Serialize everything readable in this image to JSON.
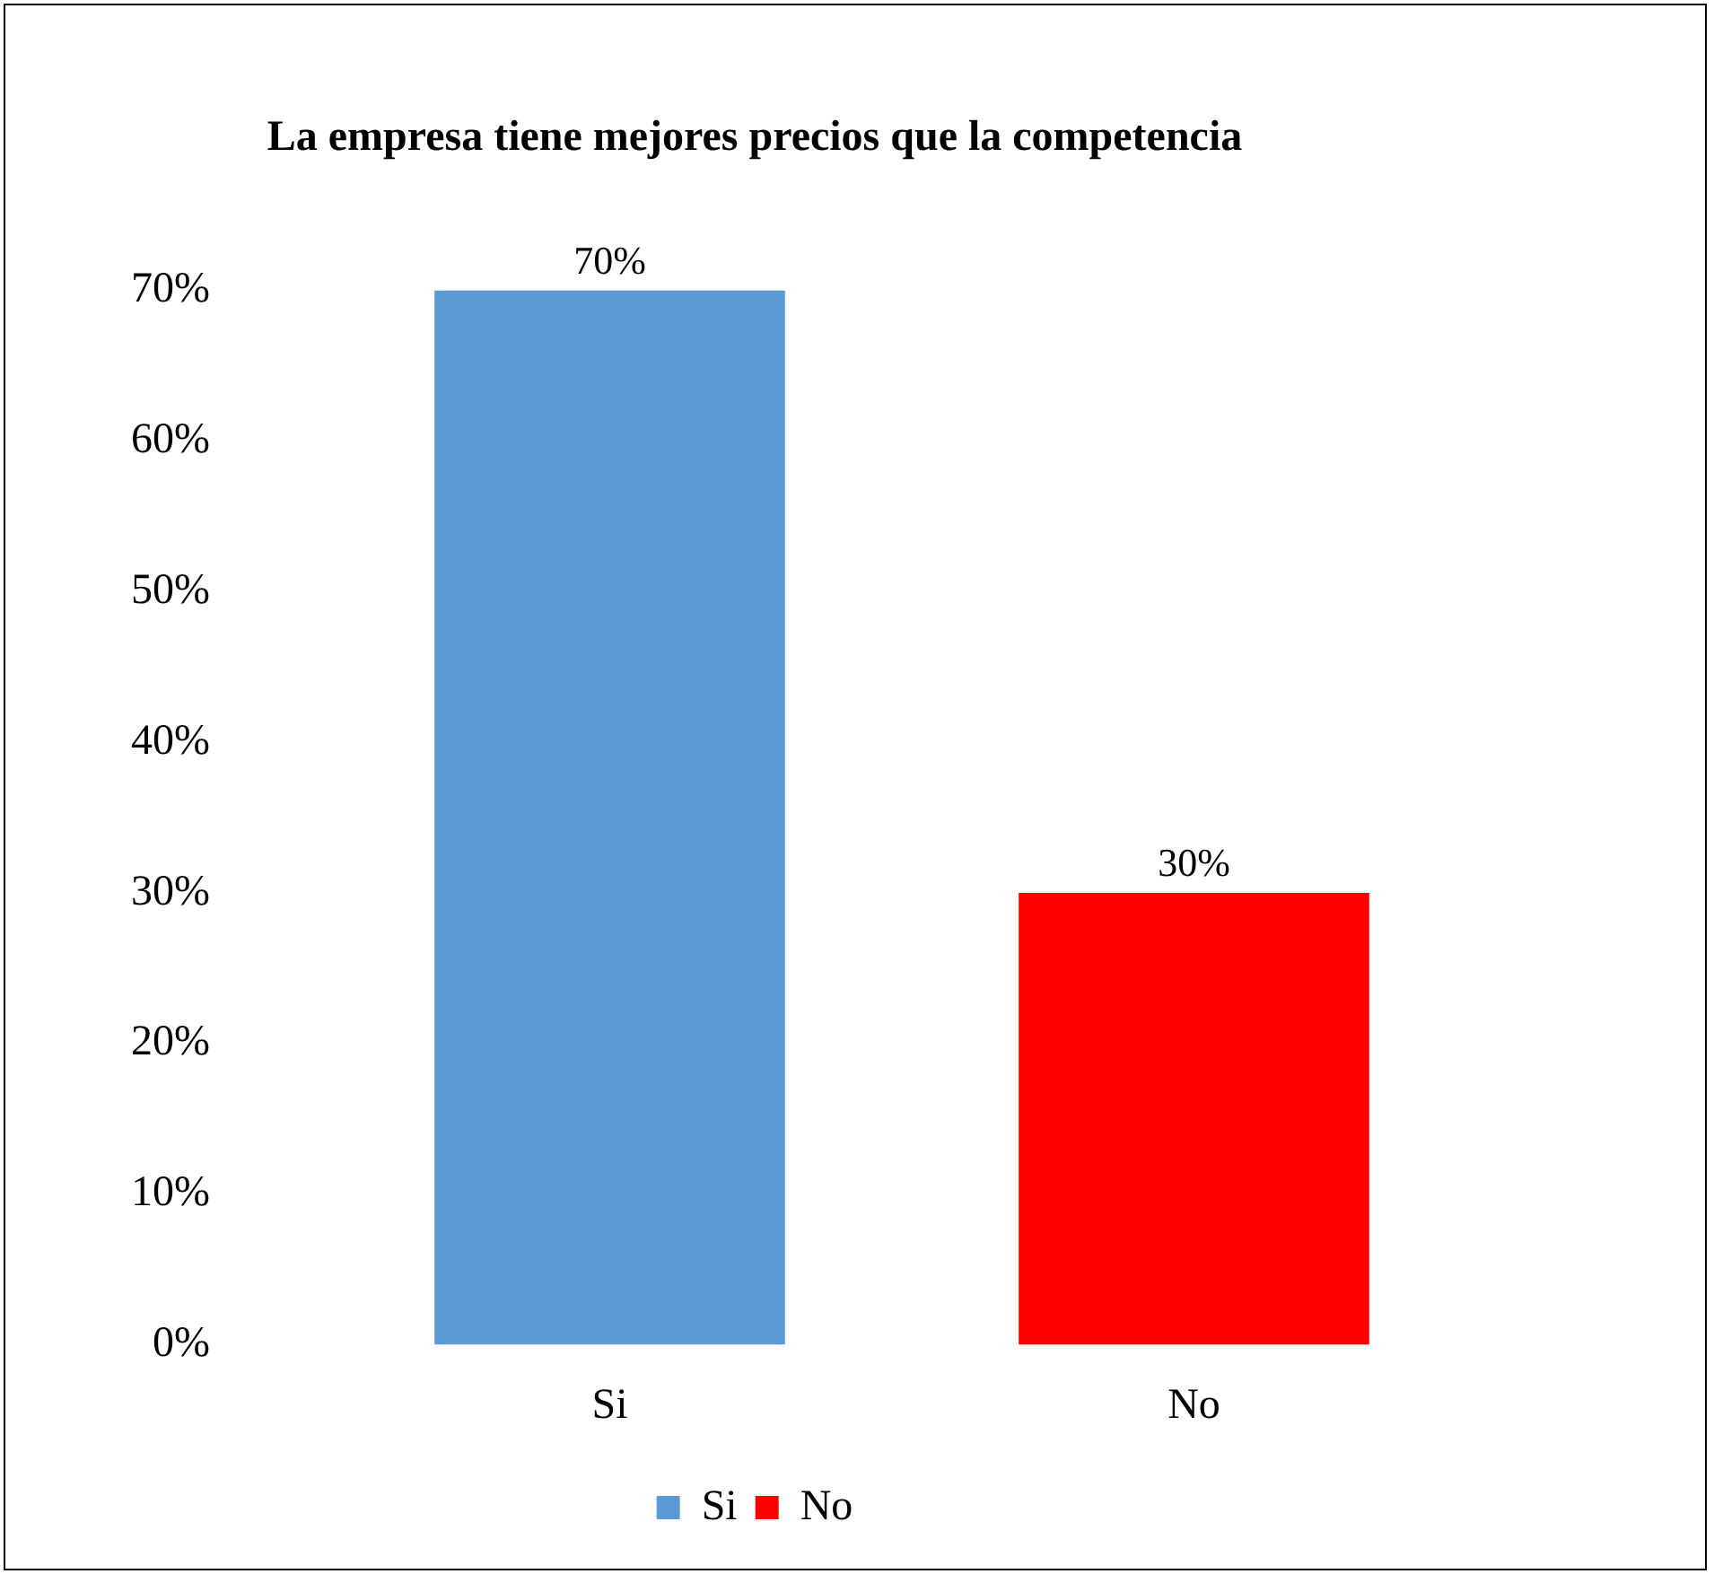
{
  "chart_data": {
    "type": "bar",
    "title": "La empresa tiene mejores precios que la competencia",
    "categories": [
      "Si",
      "No"
    ],
    "series": [
      {
        "name": "Si",
        "color": "#5b9bd5",
        "values": [
          70,
          null
        ],
        "value_labels": [
          "70%",
          null
        ]
      },
      {
        "name": "No",
        "color": "#ff0000",
        "values": [
          null,
          30
        ],
        "value_labels": [
          null,
          "30%"
        ]
      }
    ],
    "ylim": [
      0,
      70
    ],
    "yticks": [
      {
        "value": 0,
        "label": "0%"
      },
      {
        "value": 10,
        "label": "10%"
      },
      {
        "value": 20,
        "label": "20%"
      },
      {
        "value": 30,
        "label": "30%"
      },
      {
        "value": 40,
        "label": "40%"
      },
      {
        "value": 50,
        "label": "50%"
      },
      {
        "value": 60,
        "label": "60%"
      },
      {
        "value": 70,
        "label": "70%"
      }
    ],
    "grid": false,
    "legend": "bottom"
  }
}
